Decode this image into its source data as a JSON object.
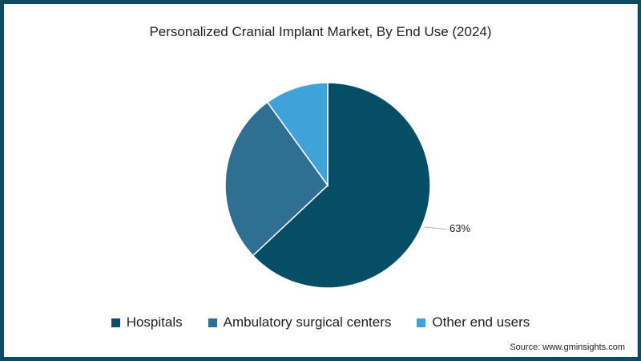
{
  "title": "Personalized Cranial Implant Market, By End Use (2024)",
  "source": "Source: www.gminsights.com",
  "legend": [
    {
      "label": "Hospitals",
      "color": "#064e66"
    },
    {
      "label": "Ambulatory surgical centers",
      "color": "#2f6f91"
    },
    {
      "label": "Other end users",
      "color": "#3fa3d9"
    }
  ],
  "data_label": "63%",
  "chart_data": {
    "type": "pie",
    "title": "Personalized Cranial Implant Market, By End Use (2024)",
    "categories": [
      "Hospitals",
      "Ambulatory surgical centers",
      "Other end users"
    ],
    "values": [
      63,
      27,
      10
    ],
    "colors": [
      "#064e66",
      "#2f6f91",
      "#3fa3d9"
    ],
    "annotations": [
      "63%"
    ],
    "legend_position": "bottom"
  }
}
